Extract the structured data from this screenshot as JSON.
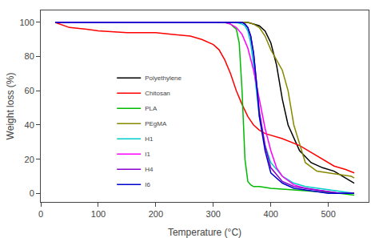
{
  "chart_data": {
    "type": "line",
    "xlabel": "Temperature (°C)",
    "ylabel": "Weight loss (%)",
    "xlim": [
      0,
      570
    ],
    "ylim": [
      -5,
      107
    ],
    "xticks": [
      0,
      100,
      200,
      300,
      400,
      500
    ],
    "yticks": [
      0,
      20,
      40,
      60,
      80,
      100
    ],
    "grid": false,
    "legend": "lower left",
    "series": [
      {
        "name": "Polyethylene",
        "color": "#000000",
        "x": [
          25,
          100,
          200,
          300,
          340,
          360,
          370,
          380,
          390,
          400,
          410,
          420,
          430,
          450,
          470,
          490,
          510,
          530,
          545
        ],
        "values": [
          100,
          100,
          100,
          100,
          100,
          100,
          99,
          98,
          95,
          88,
          75,
          55,
          40,
          25,
          18,
          15,
          13,
          9,
          6
        ]
      },
      {
        "name": "Chitosan",
        "color": "#ff0000",
        "x": [
          25,
          50,
          80,
          100,
          150,
          200,
          230,
          260,
          280,
          300,
          310,
          320,
          330,
          340,
          350,
          360,
          370,
          380,
          390,
          400,
          420,
          450,
          480,
          510,
          530,
          545
        ],
        "values": [
          100,
          97,
          96,
          95,
          94,
          94,
          93,
          92,
          90,
          87,
          84,
          78,
          70,
          60,
          52,
          45,
          40,
          37,
          35,
          34,
          32,
          28,
          22,
          16,
          14,
          12
        ]
      },
      {
        "name": "PLA",
        "color": "#00bb00",
        "x": [
          25,
          100,
          200,
          300,
          320,
          330,
          340,
          345,
          350,
          355,
          360,
          365,
          370,
          380,
          400,
          440,
          480,
          520,
          545
        ],
        "values": [
          100,
          100,
          100,
          100,
          100,
          99,
          96,
          88,
          60,
          20,
          7,
          5,
          4,
          4,
          3,
          2,
          1,
          0,
          -1
        ]
      },
      {
        "name": "PEgMA",
        "color": "#888800",
        "x": [
          25,
          100,
          200,
          300,
          330,
          350,
          360,
          370,
          380,
          390,
          400,
          410,
          420,
          430,
          440,
          460,
          480,
          500,
          520,
          540,
          545
        ],
        "values": [
          100,
          100,
          100,
          100,
          100,
          100,
          100,
          99,
          97,
          92,
          84,
          78,
          72,
          60,
          40,
          18,
          13,
          12,
          11,
          10,
          9
        ]
      },
      {
        "name": "H1",
        "color": "#00cccc",
        "x": [
          25,
          100,
          200,
          300,
          320,
          340,
          350,
          355,
          360,
          365,
          370,
          375,
          380,
          390,
          400,
          420,
          440,
          460,
          480,
          500,
          520,
          540,
          545
        ],
        "values": [
          100,
          100,
          100,
          100,
          100,
          100,
          99,
          98,
          95,
          88,
          75,
          60,
          45,
          28,
          18,
          10,
          6,
          4,
          3,
          2,
          1,
          0,
          0
        ]
      },
      {
        "name": "I1",
        "color": "#ff00ff",
        "x": [
          25,
          100,
          200,
          280,
          300,
          310,
          320,
          330,
          340,
          350,
          360,
          370,
          380,
          390,
          400,
          410,
          420,
          440,
          460,
          480,
          500,
          520,
          540,
          545
        ],
        "values": [
          100,
          100,
          100,
          100,
          100,
          100,
          100,
          99,
          97,
          93,
          85,
          72,
          55,
          38,
          25,
          15,
          10,
          5,
          3,
          2,
          1,
          0,
          0,
          0
        ]
      },
      {
        "name": "H4",
        "color": "#8800cc",
        "x": [
          25,
          100,
          200,
          300,
          330,
          350,
          355,
          360,
          365,
          370,
          375,
          380,
          390,
          400,
          420,
          440,
          460,
          480,
          500,
          520,
          540,
          545
        ],
        "values": [
          100,
          100,
          100,
          100,
          100,
          100,
          99,
          97,
          92,
          82,
          65,
          48,
          28,
          15,
          7,
          4,
          3,
          2,
          1,
          0,
          0,
          0
        ]
      },
      {
        "name": "I6",
        "color": "#0000cc",
        "x": [
          25,
          100,
          200,
          300,
          330,
          350,
          355,
          360,
          365,
          370,
          375,
          380,
          390,
          400,
          420,
          440,
          460,
          480,
          500,
          520,
          540,
          545
        ],
        "values": [
          100,
          100,
          100,
          100,
          100,
          100,
          99,
          97,
          92,
          82,
          65,
          45,
          25,
          12,
          6,
          3,
          2,
          1,
          0,
          0,
          0,
          0
        ]
      }
    ]
  }
}
